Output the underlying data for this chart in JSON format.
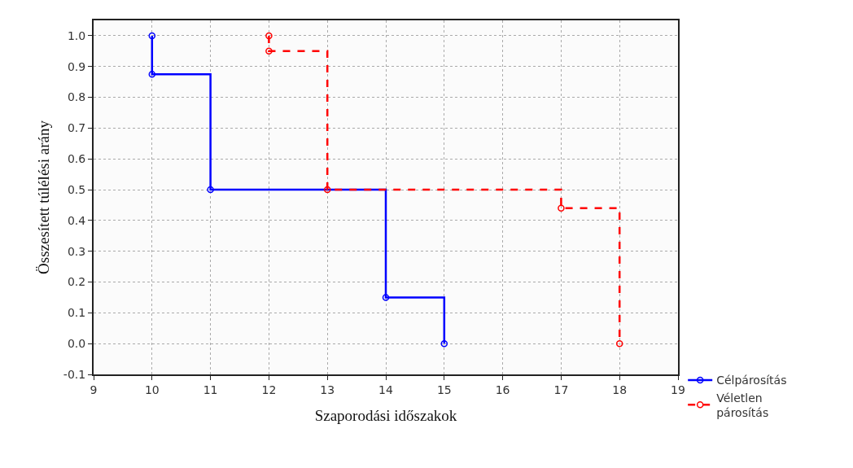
{
  "chart_data": {
    "type": "step",
    "xlabel": "Szaporodási időszakok",
    "ylabel": "Összesített túlélési arány",
    "series": [
      {
        "name": "Célpárosítás",
        "color": "#0000ff",
        "line_style": "solid",
        "x": [
          10,
          10,
          11,
          14,
          15
        ],
        "values": [
          1.0,
          0.875,
          0.5,
          0.15,
          0.0
        ]
      },
      {
        "name": "Véletlen\npárosítás",
        "color": "#ff0000",
        "line_style": "dashed",
        "x": [
          12,
          12,
          13,
          17,
          18
        ],
        "values": [
          1.0,
          0.95,
          0.5,
          0.44,
          0.0
        ]
      }
    ],
    "xlim": [
      9,
      19
    ],
    "xticks": [
      9,
      10,
      11,
      12,
      13,
      14,
      15,
      16,
      17,
      18,
      19
    ],
    "ylim": [
      -0.1,
      1.05
    ],
    "yticks": [
      {
        "value": -0.1,
        "label": "-0.1"
      },
      {
        "value": 0,
        "label": "0.0"
      },
      {
        "value": 0.1,
        "label": "0.1"
      },
      {
        "value": 0.2,
        "label": "0.2"
      },
      {
        "value": 0.3,
        "label": "0.3"
      },
      {
        "value": 0.4,
        "label": "0.4"
      },
      {
        "value": 0.5,
        "label": "0.5"
      },
      {
        "value": 0.6,
        "label": "0.6"
      },
      {
        "value": 0.7,
        "label": "0.7"
      },
      {
        "value": 0.8,
        "label": "0.8"
      },
      {
        "value": 0.9,
        "label": "0.9"
      },
      {
        "value": 1,
        "label": "1.0"
      }
    ],
    "grid": true,
    "legend": "bottom right",
    "marker": "circle"
  }
}
